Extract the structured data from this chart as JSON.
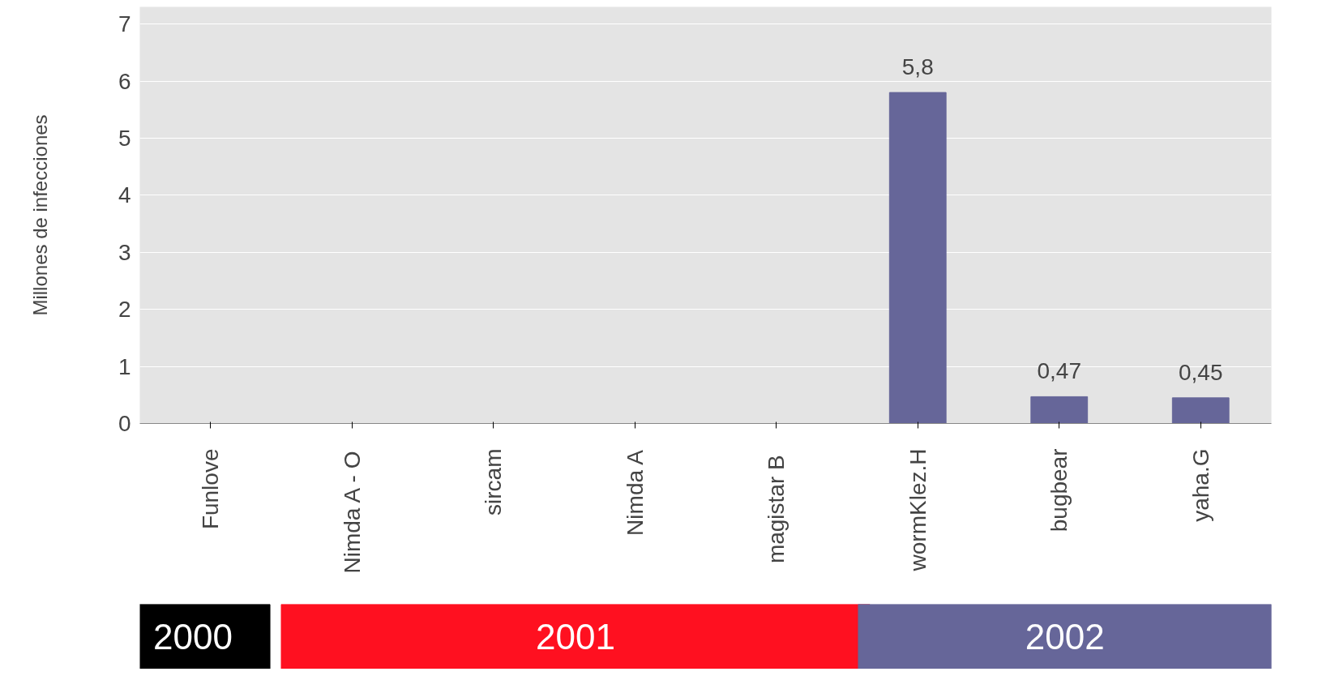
{
  "chart_data": {
    "type": "bar",
    "ylabel": "Millones de infecciones",
    "categories": [
      "Funlove",
      "Nimda A - O",
      "sircam",
      "Nimda A",
      "magistar  B",
      "wormKlez.H",
      "bugbear",
      "yaha.G"
    ],
    "values": [
      null,
      null,
      null,
      null,
      null,
      5.8,
      0.47,
      0.45
    ],
    "value_labels": [
      null,
      null,
      null,
      null,
      null,
      "5,8",
      "0,47",
      "0,45"
    ],
    "color": "#666699",
    "ylim": [
      0,
      7.3
    ],
    "yticks": [
      0,
      1,
      2,
      3,
      4,
      5,
      6,
      7
    ],
    "grid": "y",
    "annotations": [
      "2000",
      "2001",
      "2002"
    ]
  }
}
